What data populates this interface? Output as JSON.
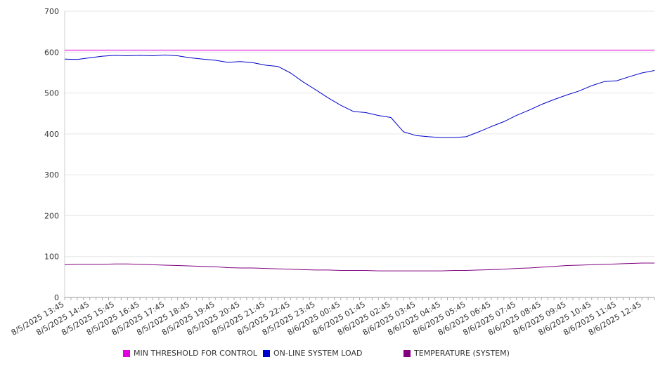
{
  "chart_data": {
    "type": "line",
    "y_ticks": [
      0,
      100,
      200,
      300,
      400,
      500,
      600,
      700
    ],
    "ylim": [
      0,
      700
    ],
    "grid": "horizontal",
    "legend_position": "bottom",
    "x_tick_labels": [
      "8/5/2025 13:45",
      "8/5/2025 14:45",
      "8/5/2025 15:45",
      "8/5/2025 16:45",
      "8/5/2025 17:45",
      "8/5/2025 18:45",
      "8/5/2025 19:45",
      "8/5/2025 20:45",
      "8/5/2025 21:45",
      "8/5/2025 22:45",
      "8/5/2025 23:45",
      "8/6/2025 00:45",
      "8/6/2025 01:45",
      "8/6/2025 02:45",
      "8/6/2025 03:45",
      "8/6/2025 04:45",
      "8/6/2025 05:45",
      "8/6/2025 06:45",
      "8/6/2025 07:45",
      "8/6/2025 08:45",
      "8/6/2025 09:45",
      "8/6/2025 10:45",
      "8/6/2025 11:45",
      "8/6/2025 12:45"
    ],
    "x_hours": [
      0,
      0.5,
      1,
      1.5,
      2,
      2.5,
      3,
      3.5,
      4,
      4.5,
      5,
      5.5,
      6,
      6.5,
      7,
      7.5,
      8,
      8.5,
      9,
      9.5,
      10,
      10.5,
      11,
      11.5,
      12,
      12.5,
      13,
      13.5,
      14,
      14.5,
      15,
      15.5,
      16,
      16.5,
      17,
      17.5,
      18,
      18.5,
      19,
      19.5,
      20,
      20.5,
      21,
      21.5,
      22,
      22.5,
      23,
      23.5
    ],
    "series": [
      {
        "name": "MIN THRESHOLD FOR CONTROL",
        "color": "#e000e0",
        "values": [
          605,
          605,
          605,
          605,
          605,
          605,
          605,
          605,
          605,
          605,
          605,
          605,
          605,
          605,
          605,
          605,
          605,
          605,
          605,
          605,
          605,
          605,
          605,
          605,
          605,
          605,
          605,
          605,
          605,
          605,
          605,
          605,
          605,
          605,
          605,
          605,
          605,
          605,
          605,
          605,
          605,
          605,
          605,
          605,
          605,
          605,
          605,
          605
        ]
      },
      {
        "name": "ON-LINE SYSTEM LOAD",
        "color": "#0000cc",
        "values": [
          583,
          582,
          586,
          590,
          592,
          591,
          592,
          591,
          593,
          591,
          586,
          583,
          580,
          575,
          577,
          574,
          568,
          565,
          549,
          527,
          508,
          488,
          470,
          455,
          452,
          445,
          440,
          405,
          396,
          393,
          391,
          391,
          393,
          405,
          418,
          430,
          445,
          458,
          472,
          484,
          495,
          505,
          518,
          528,
          530,
          540,
          549,
          555
        ]
      },
      {
        "name": "TEMPERATURE (SYSTEM)",
        "color": "#800080",
        "values": [
          80,
          81,
          81,
          81,
          82,
          82,
          81,
          80,
          79,
          78,
          77,
          76,
          75,
          73,
          72,
          72,
          71,
          70,
          69,
          68,
          67,
          67,
          66,
          66,
          66,
          65,
          65,
          65,
          65,
          65,
          65,
          66,
          66,
          67,
          68,
          69,
          71,
          72,
          74,
          76,
          78,
          79,
          80,
          81,
          82,
          83,
          84,
          84
        ]
      }
    ]
  }
}
